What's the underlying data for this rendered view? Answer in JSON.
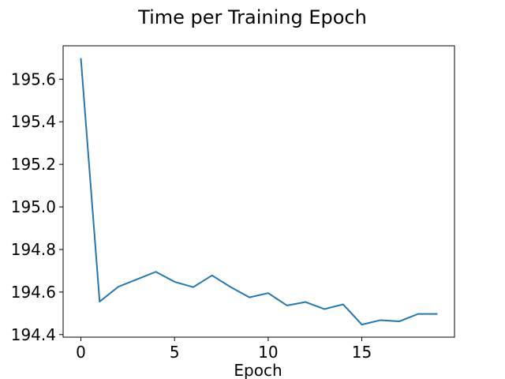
{
  "chart_data": {
    "type": "line",
    "title": "Time per Training Epoch",
    "xlabel": "Epoch",
    "ylabel": "",
    "xlim": [
      -0.95,
      19.95
    ],
    "ylim": [
      194.388,
      195.757
    ],
    "xticks": [
      0,
      5,
      10,
      15
    ],
    "yticks": [
      194.4,
      194.6,
      194.8,
      195.0,
      195.2,
      195.4,
      195.6
    ],
    "grid": false,
    "legend": "none",
    "series": [
      {
        "color": "#1f77b4",
        "x": [
          0,
          1,
          2,
          3,
          4,
          5,
          6,
          7,
          8,
          9,
          10,
          11,
          12,
          13,
          14,
          15,
          16,
          17,
          18,
          19
        ],
        "y": [
          195.695,
          194.555,
          194.625,
          194.66,
          194.695,
          194.648,
          194.623,
          194.678,
          194.623,
          194.575,
          194.595,
          194.537,
          194.553,
          194.52,
          194.542,
          194.447,
          194.468,
          194.462,
          194.497,
          194.497
        ]
      }
    ]
  }
}
